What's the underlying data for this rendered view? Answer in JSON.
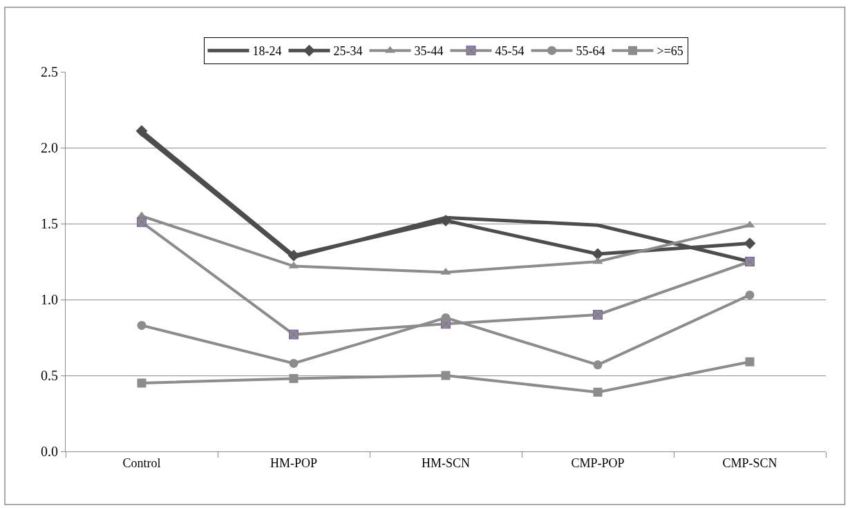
{
  "chart_data": {
    "type": "line",
    "categories": [
      "Control",
      "HM-POP",
      "HM-SCN",
      "CMP-POP",
      "CMP-SCN"
    ],
    "series": [
      {
        "name": "18-24",
        "color": "#4d4d4d",
        "marker": "none",
        "values": [
          2.09,
          1.28,
          1.54,
          1.49,
          1.25
        ]
      },
      {
        "name": "25-34",
        "color": "#4d4d4d",
        "marker": "diamond",
        "values": [
          2.11,
          1.29,
          1.52,
          1.3,
          1.37
        ]
      },
      {
        "name": "35-44",
        "color": "#8c8c8c",
        "marker": "triangle",
        "values": [
          1.55,
          1.22,
          1.18,
          1.25,
          1.49
        ]
      },
      {
        "name": "45-54",
        "color": "#8c8c8c",
        "marker": "cross",
        "values": [
          1.51,
          0.77,
          0.84,
          0.9,
          1.25
        ]
      },
      {
        "name": "55-64",
        "color": "#8c8c8c",
        "marker": "circle",
        "values": [
          0.83,
          0.58,
          0.88,
          0.57,
          1.03
        ]
      },
      {
        "name": ">=65",
        "color": "#8c8c8c",
        "marker": "square",
        "values": [
          0.45,
          0.48,
          0.5,
          0.39,
          0.59
        ]
      }
    ],
    "ylim": [
      0,
      2.5
    ],
    "yticks": [
      {
        "value": 0,
        "label": "0.0"
      },
      {
        "value": 0.5,
        "label": "0.5"
      },
      {
        "value": 1,
        "label": "1.0"
      },
      {
        "value": 1.5,
        "label": "1.5"
      },
      {
        "value": 2,
        "label": "2.0"
      },
      {
        "value": 2.5,
        "label": "2.5"
      }
    ],
    "grid": "y",
    "legend": "top",
    "line_style": "solid"
  }
}
